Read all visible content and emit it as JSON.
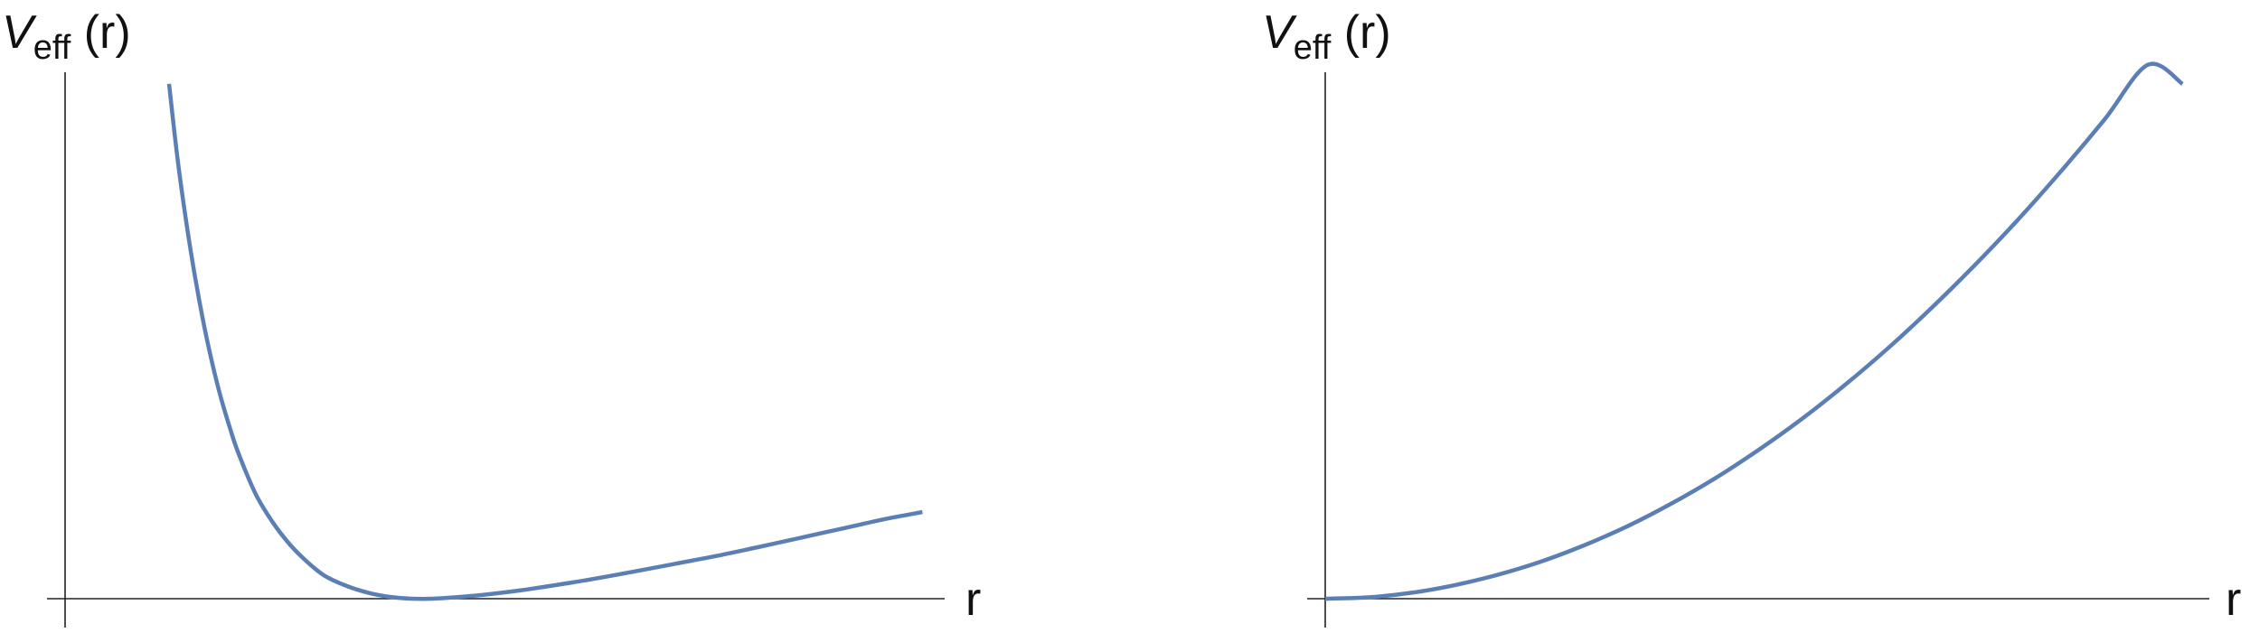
{
  "colors": {
    "curve": "#5b7fb5",
    "axis": "#222222",
    "background": "#ffffff"
  },
  "chart_data": [
    {
      "type": "line",
      "title": "",
      "ylabel": {
        "symbol": "V",
        "subscript": "eff",
        "argument": "(r)"
      },
      "xlabel": "r",
      "xlim": [
        0,
        10
      ],
      "ylim": [
        -0.05,
        1.2
      ],
      "grid": false,
      "ticks": false,
      "series": [
        {
          "x": [
            1.2,
            1.3,
            1.4,
            1.5,
            1.6,
            1.7,
            1.8,
            1.9,
            2.0,
            2.2,
            2.4,
            2.6,
            2.8,
            3.0,
            3.25,
            3.5,
            3.75,
            4.0,
            4.25,
            4.5,
            4.75,
            5.0,
            5.25,
            5.5,
            6.0,
            6.5,
            7.0,
            7.5,
            8.0,
            8.5,
            9.0,
            9.5,
            9.9
          ],
          "y": [
            1.13,
            0.964,
            0.826,
            0.707,
            0.604,
            0.516,
            0.441,
            0.377,
            0.32,
            0.23,
            0.167,
            0.118,
            0.08,
            0.05,
            0.028,
            0.013,
            0.004,
            0.0,
            0.0,
            0.003,
            0.007,
            0.012,
            0.018,
            0.025,
            0.04,
            0.057,
            0.075,
            0.093,
            0.113,
            0.134,
            0.155,
            0.176,
            0.19
          ]
        }
      ]
    },
    {
      "type": "line",
      "title": "",
      "ylabel": {
        "symbol": "V",
        "subscript": "eff",
        "argument": "(r)"
      },
      "xlabel": "r",
      "xlim": [
        0,
        10
      ],
      "ylim": [
        -0.05,
        1.2
      ],
      "grid": false,
      "ticks": false,
      "series": [
        {
          "x": [
            0,
            0.5,
            1.0,
            1.5,
            2.0,
            2.5,
            3.0,
            3.5,
            4.0,
            4.5,
            5.0,
            5.5,
            6.0,
            6.5,
            7.0,
            7.5,
            8.0,
            8.5,
            9.0,
            9.5,
            9.9
          ],
          "y": [
            0.0,
            0.003,
            0.013,
            0.03,
            0.053,
            0.082,
            0.118,
            0.16,
            0.209,
            0.264,
            0.326,
            0.394,
            0.469,
            0.55,
            0.638,
            0.732,
            0.832,
            0.939,
            1.052,
            1.172,
            1.13
          ]
        }
      ]
    }
  ]
}
